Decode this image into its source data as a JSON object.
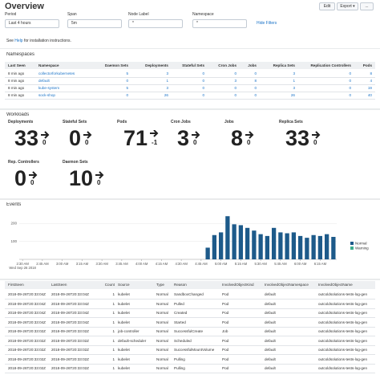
{
  "header": {
    "title": "Overview",
    "buttons": [
      "Edit",
      "Export ▾",
      "..."
    ]
  },
  "filters": [
    {
      "label": "Period",
      "value": "Last 4 hours"
    },
    {
      "label": "Span",
      "value": "5m"
    },
    {
      "label": "Node Label",
      "value": "*"
    },
    {
      "label": "Namespace",
      "value": "*"
    }
  ],
  "hide_filters": "Hide Filters",
  "help": {
    "before": "See",
    "link": "Help",
    "after": "for installation instructions."
  },
  "namespaces": {
    "title": "Namespaces",
    "columns": [
      "Last Seen",
      "Namespace",
      "Daemon Sets",
      "Deployments",
      "Stateful Sets",
      "Cron Jobs",
      "Jobs",
      "Replica Sets",
      "Replication Controllers",
      "Pods"
    ],
    "rows": [
      [
        "8 min ago",
        "collectorforkubernetes",
        5,
        3,
        0,
        0,
        0,
        3,
        0,
        8
      ],
      [
        "8 min ago",
        "default",
        0,
        1,
        0,
        3,
        8,
        1,
        0,
        4
      ],
      [
        "8 min ago",
        "kube-system",
        5,
        3,
        0,
        0,
        0,
        3,
        0,
        19
      ],
      [
        "8 min ago",
        "sock-shop",
        0,
        26,
        0,
        0,
        0,
        26,
        0,
        40
      ]
    ]
  },
  "workloads": {
    "title": "Workloads",
    "tiles": [
      {
        "label": "Deployments",
        "value": 33,
        "delta": 0
      },
      {
        "label": "Stateful Sets",
        "value": 0,
        "delta": 0
      },
      {
        "label": "Pods",
        "value": 71,
        "delta": -1
      },
      {
        "label": "Cron Jobs",
        "value": 3,
        "delta": 0
      },
      {
        "label": "Jobs",
        "value": 8,
        "delta": 0
      },
      {
        "label": "Replica Sets",
        "value": 33,
        "delta": 0
      },
      {
        "label": "Rep. Controllers",
        "value": 0,
        "delta": 0
      },
      {
        "label": "Daemon Sets",
        "value": 10,
        "delta": 0
      }
    ]
  },
  "events": {
    "title": "Events"
  },
  "chart_data": {
    "type": "bar",
    "stacked": true,
    "x_date_label": "Wed Sep 26 2018",
    "categories": [
      "2:30 AM",
      null,
      null,
      "2:45 AM",
      null,
      null,
      "3:00 AM",
      null,
      null,
      "3:15 AM",
      null,
      null,
      "3:30 AM",
      null,
      null,
      "3:45 AM",
      null,
      null,
      "4:00 AM",
      null,
      null,
      "4:15 AM",
      null,
      null,
      "4:30 AM",
      null,
      null,
      "4:45 AM",
      null,
      null,
      "5:00 AM",
      null,
      null,
      "5:15 AM",
      null,
      null,
      "5:30 AM",
      null,
      null,
      "5:45 AM",
      null,
      null,
      "6:00 AM",
      null,
      null,
      "6:15 AM",
      null,
      null
    ],
    "series": [
      {
        "name": "Normal",
        "color": "#1d5a8a",
        "values": [
          0,
          0,
          0,
          0,
          0,
          0,
          0,
          0,
          0,
          0,
          0,
          0,
          0,
          0,
          0,
          0,
          0,
          0,
          0,
          0,
          0,
          0,
          0,
          0,
          0,
          0,
          0,
          0,
          65,
          135,
          150,
          240,
          195,
          190,
          175,
          160,
          140,
          130,
          175,
          150,
          145,
          150,
          130,
          120,
          135,
          130,
          140,
          125
        ]
      },
      {
        "name": "Warning",
        "color": "#3fae8e",
        "values": [
          0,
          0,
          0,
          0,
          0,
          0,
          0,
          0,
          0,
          0,
          0,
          0,
          0,
          0,
          0,
          0,
          0,
          0,
          0,
          0,
          0,
          0,
          0,
          0,
          0,
          0,
          0,
          0,
          0,
          0,
          0,
          0,
          0,
          0,
          0,
          0,
          0,
          0,
          0,
          0,
          0,
          0,
          0,
          0,
          0,
          0,
          0,
          0
        ]
      }
    ],
    "ylim": [
      0,
      250
    ],
    "yticks": [
      100,
      200
    ],
    "grid": true,
    "legend": "right"
  },
  "events_table": {
    "columns": [
      "FirstSeen",
      "LastSeen",
      "Count",
      "Source",
      "Type",
      "Reason",
      "InvolvedObjectKind",
      "InvolvedObjectNamespace",
      "InvolvedObjectName"
    ],
    "rows": [
      [
        "2018-09-26T20:33:04Z",
        "2018-09-26T20:33:04Z",
        1,
        "kubelet",
        "Normal",
        "SandboxChanged",
        "Pod",
        "default",
        "outcoldsolutions-tests-log-gen"
      ],
      [
        "2018-09-26T20:33:04Z",
        "2018-09-26T20:33:04Z",
        1,
        "kubelet",
        "Normal",
        "Pulled",
        "Pod",
        "default",
        "outcoldsolutions-tests-log-gen"
      ],
      [
        "2018-09-26T20:33:04Z",
        "2018-09-26T20:33:04Z",
        1,
        "kubelet",
        "Normal",
        "Created",
        "Pod",
        "default",
        "outcoldsolutions-tests-log-gen"
      ],
      [
        "2018-09-26T20:33:04Z",
        "2018-09-26T20:33:04Z",
        1,
        "kubelet",
        "Normal",
        "Started",
        "Pod",
        "default",
        "outcoldsolutions-tests-log-gen"
      ],
      [
        "2018-09-26T20:33:02Z",
        "2018-09-26T20:33:02Z",
        1,
        "job-controller",
        "Normal",
        "SuccessfulCreate",
        "Job",
        "default",
        "outcoldsolutions-tests-log-gen"
      ],
      [
        "2018-09-26T20:33:02Z",
        "2018-09-26T20:33:02Z",
        1,
        "default-scheduler",
        "Normal",
        "Scheduled",
        "Pod",
        "default",
        "outcoldsolutions-tests-log-gen"
      ],
      [
        "2018-09-26T20:33:02Z",
        "2018-09-26T20:33:02Z",
        1,
        "kubelet",
        "Normal",
        "SuccessfulMountVolume",
        "Pod",
        "default",
        "outcoldsolutions-tests-log-gen"
      ],
      [
        "2018-09-26T20:33:02Z",
        "2018-09-26T20:33:02Z",
        1,
        "kubelet",
        "Normal",
        "Pulling",
        "Pod",
        "default",
        "outcoldsolutions-tests-log-gen"
      ],
      [
        "2018-09-26T20:33:02Z",
        "2018-09-26T20:33:02Z",
        1,
        "kubelet",
        "Normal",
        "Pulling",
        "Pod",
        "default",
        "outcoldsolutions-tests-log-gen"
      ]
    ]
  }
}
